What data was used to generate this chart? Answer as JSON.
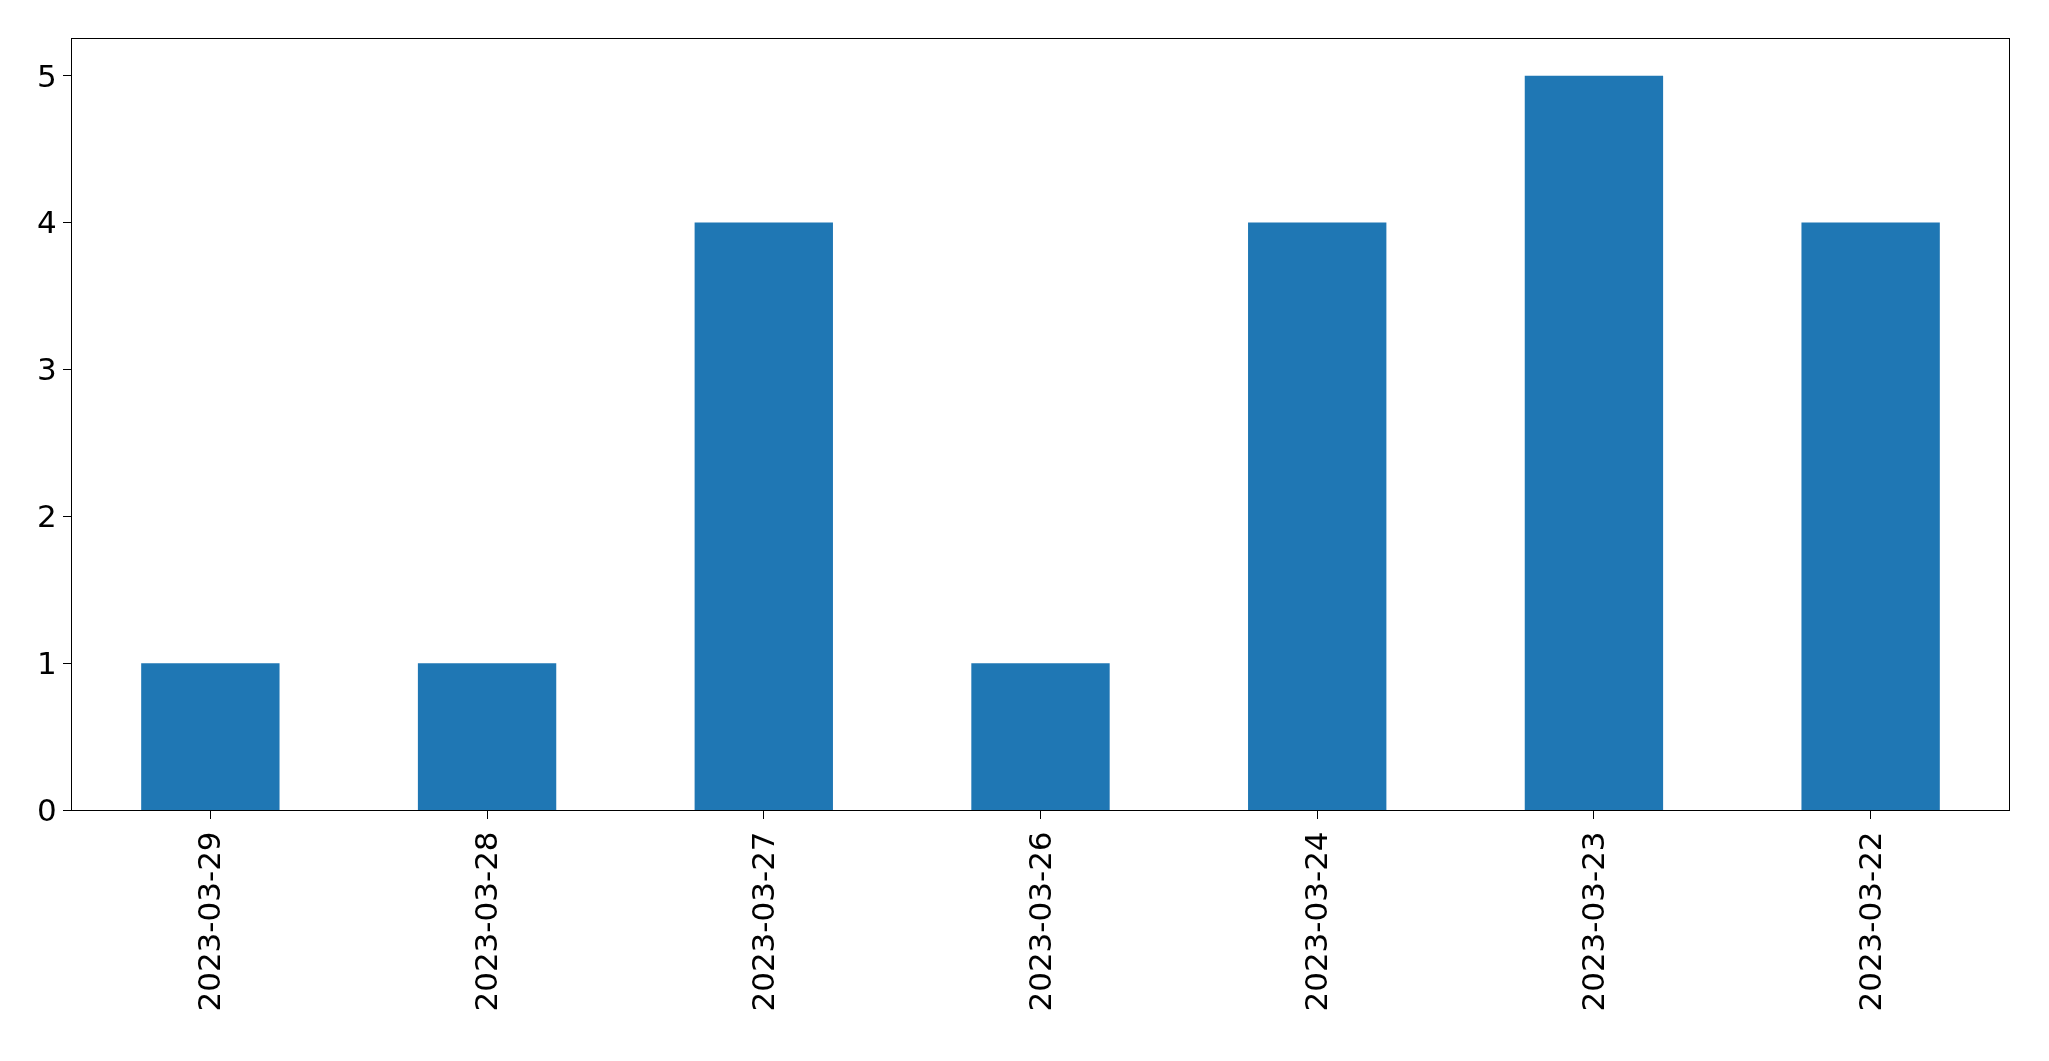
{
  "chart_data": {
    "type": "bar",
    "categories": [
      "2023-03-29",
      "2023-03-28",
      "2023-03-27",
      "2023-03-26",
      "2023-03-24",
      "2023-03-23",
      "2023-03-22"
    ],
    "values": [
      1,
      1,
      4,
      1,
      4,
      5,
      4
    ],
    "color": "#1f77b4",
    "ylim": [
      0,
      5.25
    ],
    "yticks": [
      0,
      1,
      2,
      3,
      4,
      5
    ],
    "legend": false
  }
}
